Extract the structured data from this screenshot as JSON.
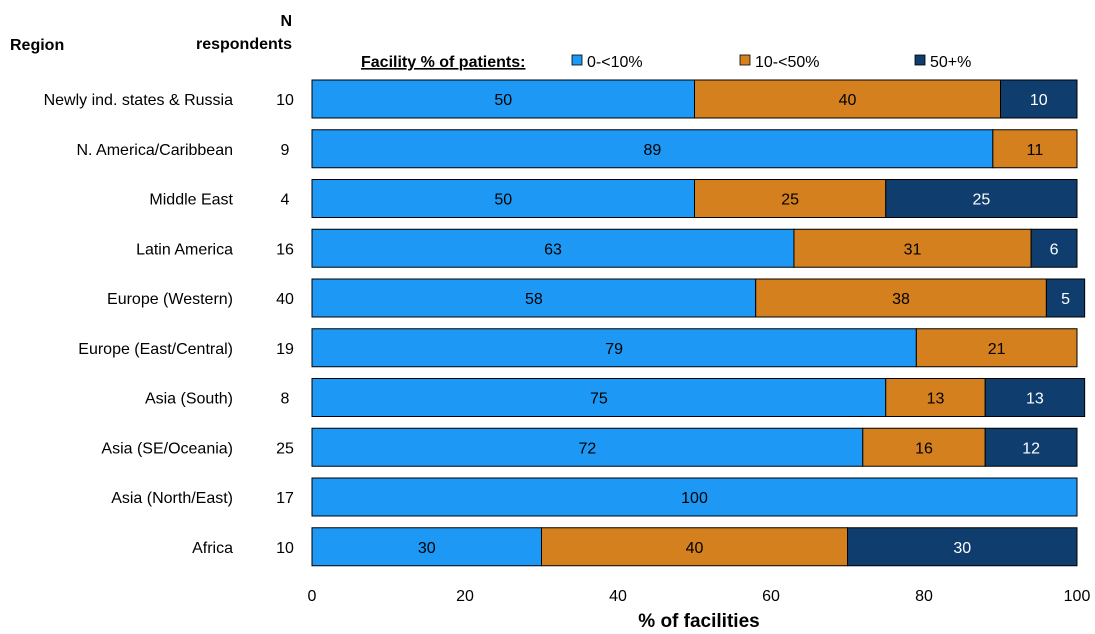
{
  "chart_data": {
    "type": "bar",
    "orientation": "horizontal",
    "stacked": true,
    "region_header": "Region",
    "n_header_line1": "N",
    "n_header_line2": "respondents",
    "legend_title": "Facility % of patients:",
    "xlabel": "% of facilities",
    "xlim": [
      0,
      100
    ],
    "xticks": [
      "0",
      "20",
      "40",
      "60",
      "80",
      "100"
    ],
    "categories": [
      "Newly ind. states & Russia",
      "N. America/Caribbean",
      "Middle East",
      "Latin America",
      "Europe (Western)",
      "Europe (East/Central)",
      "Asia (South)",
      "Asia (SE/Oceania)",
      "Asia (North/East)",
      "Africa"
    ],
    "n_respondents": [
      "10",
      "9",
      "4",
      "16",
      "40",
      "19",
      "8",
      "25",
      "17",
      "10"
    ],
    "series": [
      {
        "name": "0-<10%",
        "color": "#1e98f5",
        "label_color": "#000000",
        "values": [
          50,
          89,
          50,
          63,
          58,
          79,
          75,
          72,
          100,
          30
        ]
      },
      {
        "name": "10-<50%",
        "color": "#d5801e",
        "label_color": "#000000",
        "values": [
          40,
          11,
          25,
          31,
          38,
          21,
          13,
          16,
          0,
          40
        ]
      },
      {
        "name": "50+%",
        "color": "#0f3d6e",
        "label_color": "#ffffff",
        "values": [
          10,
          0,
          25,
          6,
          5,
          0,
          13,
          12,
          0,
          30
        ]
      }
    ],
    "legend_position": "top",
    "grid": false
  }
}
